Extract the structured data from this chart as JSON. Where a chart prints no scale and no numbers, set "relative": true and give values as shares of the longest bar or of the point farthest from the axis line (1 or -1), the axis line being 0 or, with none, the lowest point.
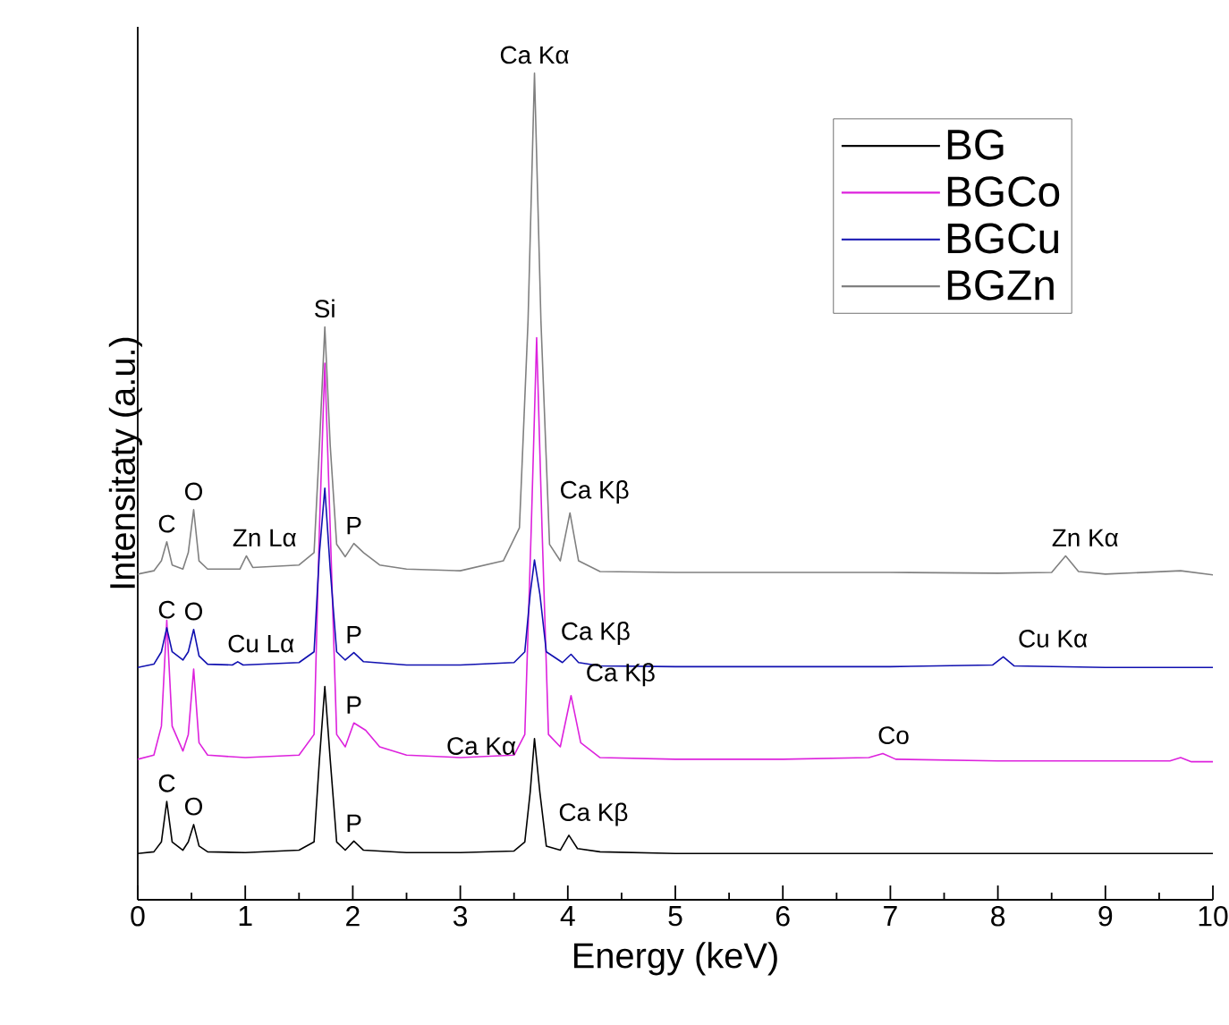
{
  "chart_data": {
    "type": "line",
    "relative": true,
    "xlabel": "Energy (keV)",
    "ylabel": "Intensitaty (a.u.)",
    "xlim": [
      0,
      10
    ],
    "xticks": [
      0,
      1,
      2,
      3,
      4,
      5,
      6,
      7,
      8,
      9,
      10
    ],
    "legend": "top right",
    "series": [
      {
        "name": "BG",
        "color": "#000000",
        "x": [
          0,
          0.15,
          0.22,
          0.27,
          0.32,
          0.42,
          0.47,
          0.52,
          0.57,
          0.65,
          1.0,
          1.5,
          1.64,
          1.69,
          1.74,
          1.79,
          1.85,
          1.93,
          2.01,
          2.1,
          2.5,
          3.0,
          3.5,
          3.6,
          3.65,
          3.69,
          3.74,
          3.8,
          3.93,
          4.01,
          4.09,
          4.3,
          5,
          6,
          7,
          8,
          9,
          10
        ],
        "values": [
          0.056,
          0.058,
          0.07,
          0.119,
          0.07,
          0.06,
          0.07,
          0.091,
          0.065,
          0.058,
          0.057,
          0.06,
          0.07,
          0.17,
          0.258,
          0.17,
          0.07,
          0.06,
          0.071,
          0.06,
          0.057,
          0.057,
          0.059,
          0.07,
          0.13,
          0.195,
          0.13,
          0.065,
          0.06,
          0.078,
          0.062,
          0.058,
          0.056,
          0.056,
          0.056,
          0.056,
          0.056,
          0.056
        ]
      },
      {
        "name": "BGCo",
        "color": "#dd22dd",
        "x": [
          0,
          0.15,
          0.22,
          0.27,
          0.32,
          0.42,
          0.47,
          0.52,
          0.57,
          0.65,
          1.0,
          1.5,
          1.64,
          1.69,
          1.74,
          1.79,
          1.85,
          1.93,
          2.01,
          2.12,
          2.25,
          2.5,
          3.0,
          3.5,
          3.6,
          3.66,
          3.71,
          3.76,
          3.82,
          3.93,
          4.03,
          4.12,
          4.3,
          5,
          6,
          6.8,
          6.93,
          7.05,
          8,
          9,
          9.6,
          9.7,
          9.8,
          10
        ],
        "values": [
          0.17,
          0.175,
          0.21,
          0.338,
          0.21,
          0.18,
          0.2,
          0.279,
          0.19,
          0.175,
          0.172,
          0.175,
          0.2,
          0.45,
          0.649,
          0.45,
          0.2,
          0.185,
          0.214,
          0.205,
          0.185,
          0.175,
          0.172,
          0.175,
          0.2,
          0.45,
          0.68,
          0.45,
          0.2,
          0.185,
          0.247,
          0.19,
          0.172,
          0.17,
          0.17,
          0.172,
          0.177,
          0.17,
          0.168,
          0.168,
          0.168,
          0.172,
          0.167,
          0.167
        ]
      },
      {
        "name": "BGCu",
        "color": "#1010b0",
        "x": [
          0,
          0.15,
          0.22,
          0.27,
          0.32,
          0.42,
          0.47,
          0.52,
          0.57,
          0.65,
          0.88,
          0.93,
          0.98,
          1.5,
          1.64,
          1.69,
          1.74,
          1.79,
          1.85,
          1.93,
          2.01,
          2.1,
          2.5,
          3.0,
          3.5,
          3.6,
          3.65,
          3.69,
          3.74,
          3.8,
          3.95,
          4.03,
          4.1,
          4.3,
          5,
          6,
          7,
          7.95,
          8.05,
          8.15,
          9,
          10
        ],
        "values": [
          0.281,
          0.285,
          0.3,
          0.329,
          0.3,
          0.29,
          0.3,
          0.327,
          0.295,
          0.285,
          0.284,
          0.288,
          0.284,
          0.287,
          0.3,
          0.42,
          0.498,
          0.4,
          0.3,
          0.29,
          0.299,
          0.288,
          0.284,
          0.284,
          0.287,
          0.3,
          0.37,
          0.411,
          0.37,
          0.3,
          0.287,
          0.297,
          0.287,
          0.283,
          0.282,
          0.282,
          0.282,
          0.284,
          0.294,
          0.283,
          0.281,
          0.281
        ]
      },
      {
        "name": "BGZn",
        "color": "#808080",
        "x": [
          0,
          0.15,
          0.22,
          0.27,
          0.32,
          0.42,
          0.47,
          0.52,
          0.57,
          0.65,
          0.95,
          1.01,
          1.07,
          1.5,
          1.64,
          1.69,
          1.74,
          1.79,
          1.85,
          1.93,
          2.01,
          2.1,
          2.25,
          2.5,
          3.0,
          3.4,
          3.55,
          3.63,
          3.69,
          3.75,
          3.83,
          3.93,
          4.02,
          4.1,
          4.3,
          5,
          6,
          7,
          8,
          8.5,
          8.63,
          8.75,
          9,
          9.7,
          10
        ],
        "values": [
          0.394,
          0.398,
          0.41,
          0.433,
          0.405,
          0.4,
          0.42,
          0.472,
          0.41,
          0.4,
          0.4,
          0.416,
          0.402,
          0.405,
          0.42,
          0.55,
          0.693,
          0.55,
          0.43,
          0.415,
          0.431,
          0.42,
          0.405,
          0.4,
          0.398,
          0.41,
          0.45,
          0.7,
          1.0,
          0.7,
          0.43,
          0.41,
          0.468,
          0.41,
          0.397,
          0.396,
          0.396,
          0.396,
          0.395,
          0.396,
          0.416,
          0.397,
          0.394,
          0.398,
          0.393
        ]
      }
    ],
    "annotations": [
      {
        "text": "C",
        "x": 0.27,
        "y": 0.433
      },
      {
        "text": "O",
        "x": 0.52,
        "y": 0.472
      },
      {
        "text": "Zn Lα",
        "x": 1.01,
        "y": 0.416
      },
      {
        "text": "Si",
        "x": 1.74,
        "y": 0.693
      },
      {
        "text": "P",
        "x": 2.01,
        "y": 0.431
      },
      {
        "text": "Ca Kα",
        "x": 3.69,
        "y": 1.0
      },
      {
        "text": "Ca Kβ",
        "x": 4.02,
        "y": 0.468
      },
      {
        "text": "Zn Kα",
        "x": 8.63,
        "y": 0.416
      },
      {
        "text": "C",
        "x": 0.27,
        "y": 0.329
      },
      {
        "text": "O",
        "x": 0.52,
        "y": 0.327
      },
      {
        "text": "Cu Lα",
        "x": 0.93,
        "y": 0.288
      },
      {
        "text": "P",
        "x": 2.01,
        "y": 0.299
      },
      {
        "text": "Ca Kβ",
        "x": 4.03,
        "y": 0.297
      },
      {
        "text": "Cu Kα",
        "x": 8.05,
        "y": 0.294
      },
      {
        "text": "P",
        "x": 2.01,
        "y": 0.214
      },
      {
        "text": "Ca Kβ",
        "x": 4.03,
        "y": 0.247
      },
      {
        "text": "Co",
        "x": 6.93,
        "y": 0.177
      },
      {
        "text": "C",
        "x": 0.27,
        "y": 0.119
      },
      {
        "text": "O",
        "x": 0.52,
        "y": 0.091
      },
      {
        "text": "P",
        "x": 2.01,
        "y": 0.071
      },
      {
        "text": "Ca Kα",
        "x": 3.69,
        "y": 0.195
      },
      {
        "text": "Ca Kβ",
        "x": 4.01,
        "y": 0.078
      }
    ]
  }
}
